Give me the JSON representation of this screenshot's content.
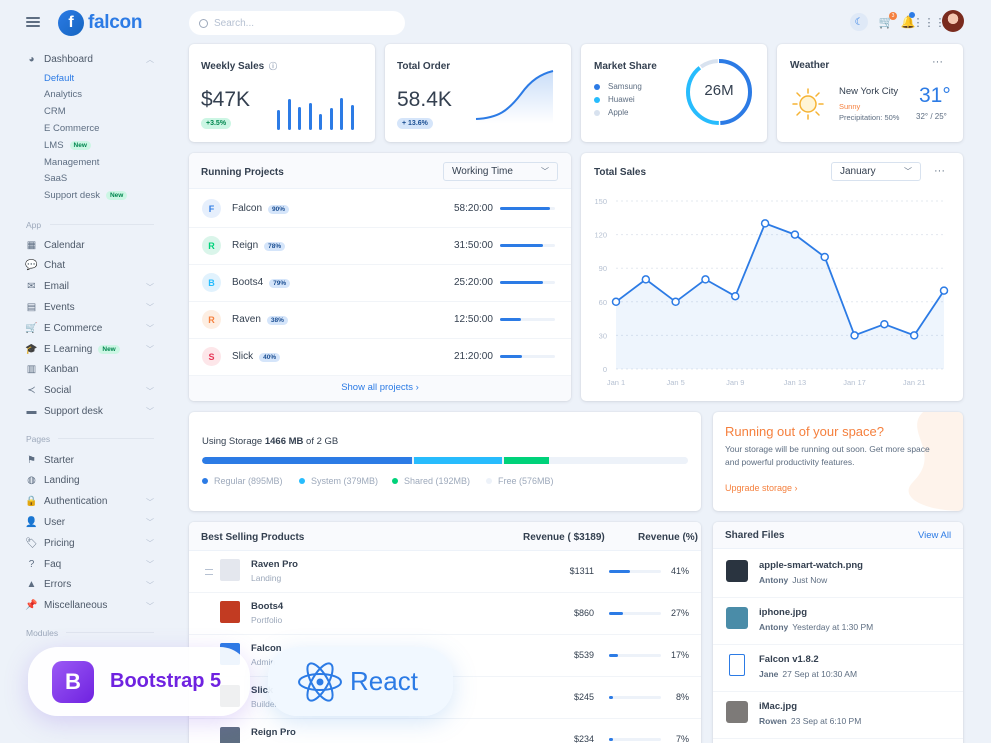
{
  "sidebar": {
    "logo_letter": "f",
    "logo_text": "falcon",
    "dashboard": {
      "label": "Dashboard",
      "icon": "pie-chart-icon"
    },
    "dashboard_items": [
      {
        "label": "Default",
        "active": true,
        "badge": ""
      },
      {
        "label": "Analytics",
        "badge": ""
      },
      {
        "label": "CRM",
        "badge": ""
      },
      {
        "label": "E Commerce",
        "badge": ""
      },
      {
        "label": "LMS",
        "badge": "New"
      },
      {
        "label": "Management",
        "badge": ""
      },
      {
        "label": "SaaS",
        "badge": ""
      },
      {
        "label": "Support desk",
        "badge": "New"
      }
    ],
    "section_app": "App",
    "app_items": [
      {
        "label": "Calendar",
        "icon": "calendar-icon",
        "chevron": false,
        "badge": ""
      },
      {
        "label": "Chat",
        "icon": "chat-icon",
        "chevron": false,
        "badge": ""
      },
      {
        "label": "Email",
        "icon": "envelope-icon",
        "chevron": true,
        "badge": ""
      },
      {
        "label": "Events",
        "icon": "events-icon",
        "chevron": true,
        "badge": ""
      },
      {
        "label": "E Commerce",
        "icon": "cart-icon",
        "chevron": true,
        "badge": ""
      },
      {
        "label": "E Learning",
        "icon": "graduation-cap-icon",
        "chevron": true,
        "badge": "New"
      },
      {
        "label": "Kanban",
        "icon": "kanban-icon",
        "chevron": false,
        "badge": ""
      },
      {
        "label": "Social",
        "icon": "share-icon",
        "chevron": true,
        "badge": ""
      },
      {
        "label": "Support desk",
        "icon": "ticket-icon",
        "chevron": true,
        "badge": ""
      }
    ],
    "section_pages": "Pages",
    "page_items": [
      {
        "label": "Starter",
        "icon": "flag-icon",
        "chevron": false
      },
      {
        "label": "Landing",
        "icon": "globe-icon",
        "chevron": false
      },
      {
        "label": "Authentication",
        "icon": "lock-icon",
        "chevron": true
      },
      {
        "label": "User",
        "icon": "user-icon",
        "chevron": true
      },
      {
        "label": "Pricing",
        "icon": "tags-icon",
        "chevron": true
      },
      {
        "label": "Faq",
        "icon": "question-icon",
        "chevron": true
      },
      {
        "label": "Errors",
        "icon": "warning-icon",
        "chevron": true
      },
      {
        "label": "Miscellaneous",
        "icon": "pin-icon",
        "chevron": true
      }
    ],
    "section_modules": "Modules"
  },
  "topbar": {
    "search_placeholder": "Search...",
    "cart_count": "3",
    "icons": [
      "moon-icon",
      "cart-icon",
      "bell-icon",
      "apps-grid-icon"
    ]
  },
  "weekly_sales": {
    "title": "Weekly Sales",
    "value": "$47K",
    "change": "+3.5%",
    "bars": [
      0.55,
      0.85,
      0.65,
      0.75,
      0.45,
      0.6,
      0.9,
      0.7
    ]
  },
  "total_order": {
    "title": "Total Order",
    "value": "58.4K",
    "change": "+ 13.6%"
  },
  "market_share": {
    "title": "Market Share",
    "center": "26M",
    "items": [
      {
        "label": "Samsung",
        "color": "#2c7be5",
        "value": 50
      },
      {
        "label": "Huawei",
        "color": "#27bcfd",
        "value": 40
      },
      {
        "label": "Apple",
        "color": "#d8e2ef",
        "value": 10
      }
    ]
  },
  "weather": {
    "title": "Weather",
    "menu": "···",
    "city": "New York City",
    "condition": "Sunny",
    "precipitation": "Precipitation: 50%",
    "temp": "31°",
    "range": "32° / 25°"
  },
  "running_projects": {
    "title": "Running Projects",
    "select": "Working Time",
    "footer": "Show all projects ›",
    "rows": [
      {
        "letter": "F",
        "name": "Falcon",
        "pct_label": "90%",
        "progress": 0.9,
        "time": "58:20:00",
        "bg": "#e6effc",
        "fg": "#2c7be5"
      },
      {
        "letter": "R",
        "name": "Reign",
        "pct_label": "78%",
        "progress": 0.78,
        "time": "31:50:00",
        "bg": "#daf5ea",
        "fg": "#00d27a"
      },
      {
        "letter": "B",
        "name": "Boots4",
        "pct_label": "79%",
        "progress": 0.79,
        "time": "25:20:00",
        "bg": "#e1f2fd",
        "fg": "#27bcfd"
      },
      {
        "letter": "R",
        "name": "Raven",
        "pct_label": "38%",
        "progress": 0.38,
        "time": "12:50:00",
        "bg": "#fdeee2",
        "fg": "#f5803e"
      },
      {
        "letter": "S",
        "name": "Slick",
        "pct_label": "40%",
        "progress": 0.4,
        "time": "21:20:00",
        "bg": "#fde6e9",
        "fg": "#e63757"
      }
    ]
  },
  "total_sales": {
    "title": "Total Sales",
    "select": "January",
    "menu": "···"
  },
  "chart_data": {
    "type": "line",
    "title": "Total Sales",
    "x": [
      "Jan 1",
      "Jan 3",
      "Jan 5",
      "Jan 7",
      "Jan 9",
      "Jan 11",
      "Jan 13",
      "Jan 15",
      "Jan 17",
      "Jan 19",
      "Jan 21",
      "Jan 23"
    ],
    "x_tick_labels": [
      "Jan 1",
      "Jan 5",
      "Jan 9",
      "Jan 13",
      "Jan 17",
      "Jan 21"
    ],
    "y_ticks": [
      0,
      30,
      60,
      90,
      120,
      150
    ],
    "ylim": [
      0,
      150
    ],
    "series": [
      {
        "values": [
          60,
          80,
          60,
          80,
          65,
          130,
          120,
          100,
          30,
          40,
          30,
          70
        ]
      }
    ],
    "color": "#2c7be5",
    "grid": true
  },
  "storage": {
    "label_pre": "Using Storage ",
    "used": "1466 MB",
    "label_post": " of 2 GB",
    "segments": [
      {
        "label": "Regular (895MB)",
        "value": 895,
        "color": "#2c7be5"
      },
      {
        "label": "System (379MB)",
        "value": 379,
        "color": "#27bcfd"
      },
      {
        "label": "Shared (192MB)",
        "value": 192,
        "color": "#00d27a"
      },
      {
        "label": "Free (576MB)",
        "value": 576,
        "color": "#edf2f9"
      }
    ]
  },
  "space_alert": {
    "title": "Running out of your space?",
    "body": "Your storage will be running out soon. Get more space and powerful productivity features.",
    "link": "Upgrade storage ›"
  },
  "best_selling": {
    "title": "Best Selling Products",
    "col_revenue": "Revenue ( $3189)",
    "col_pct": "Revenue (%)",
    "rows": [
      {
        "name": "Raven Pro",
        "category": "Landing",
        "revenue": "$1311",
        "pct": "41%",
        "value": 0.41,
        "thumb": "#e4e7ee"
      },
      {
        "name": "Boots4",
        "category": "Portfolio",
        "revenue": "$860",
        "pct": "27%",
        "value": 0.27,
        "thumb": "#c23b22"
      },
      {
        "name": "Falcon",
        "category": "Admin",
        "revenue": "$539",
        "pct": "17%",
        "value": 0.17,
        "thumb": "#2c7be5"
      },
      {
        "name": "Slick",
        "category": "Builder",
        "revenue": "$245",
        "pct": "8%",
        "value": 0.08,
        "thumb": "#344050"
      },
      {
        "name": "Reign Pro",
        "category": "",
        "revenue": "$234",
        "pct": "7%",
        "value": 0.07,
        "thumb": "#5e6e82"
      }
    ]
  },
  "shared_files": {
    "title": "Shared Files",
    "view_all": "View All",
    "rows": [
      {
        "name": "apple-smart-watch.png",
        "user": "Antony",
        "time": "Just Now",
        "thumb": "#2a3440",
        "icon": ""
      },
      {
        "name": "iphone.jpg",
        "user": "Antony",
        "time": "Yesterday at 1:30 PM",
        "thumb": "#4a8ca8",
        "icon": ""
      },
      {
        "name": "Falcon v1.8.2",
        "user": "Jane",
        "time": "27 Sep at 10:30 AM",
        "thumb": "",
        "icon": "file-zip-icon"
      },
      {
        "name": "iMac.jpg",
        "user": "Rowen",
        "time": "23 Sep at 6:10 PM",
        "thumb": "#7d7a78",
        "icon": ""
      }
    ]
  },
  "overlays": {
    "bootstrap_letter": "B",
    "bootstrap_label": "Bootstrap 5",
    "react_label": "React"
  }
}
